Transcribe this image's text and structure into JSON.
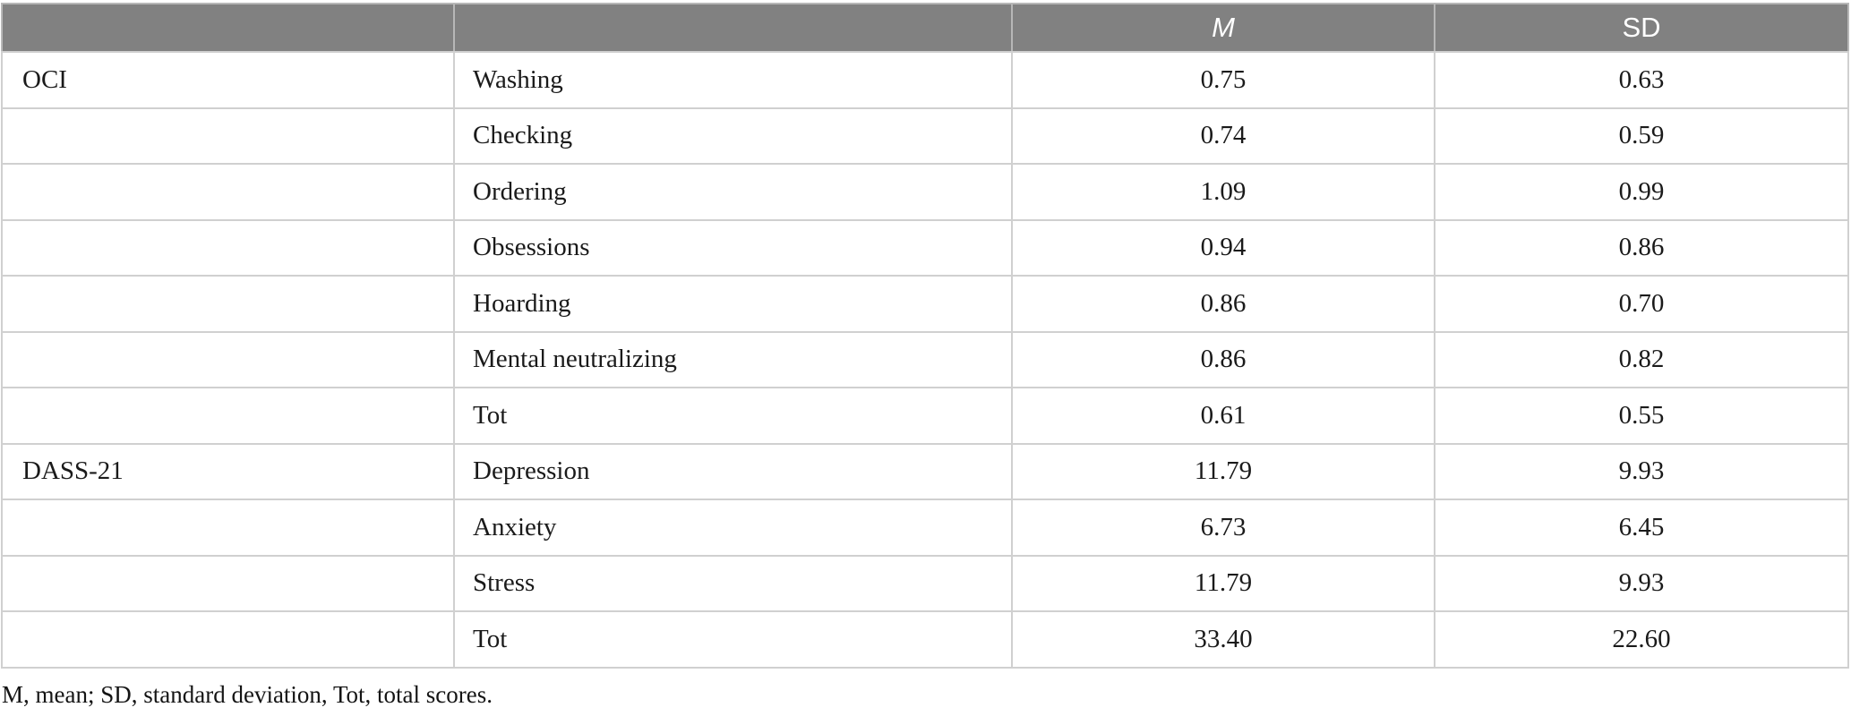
{
  "table": {
    "header": {
      "group_label": "",
      "subscale_label": "",
      "m_label": "M",
      "sd_label": "SD"
    },
    "rows": [
      {
        "group": "OCI",
        "label": "Washing",
        "m": "0.75",
        "sd": "0.63"
      },
      {
        "group": "",
        "label": "Checking",
        "m": "0.74",
        "sd": "0.59"
      },
      {
        "group": "",
        "label": "Ordering",
        "m": "1.09",
        "sd": "0.99"
      },
      {
        "group": "",
        "label": "Obsessions",
        "m": "0.94",
        "sd": "0.86"
      },
      {
        "group": "",
        "label": "Hoarding",
        "m": "0.86",
        "sd": "0.70"
      },
      {
        "group": "",
        "label": "Mental neutralizing",
        "m": "0.86",
        "sd": "0.82"
      },
      {
        "group": "",
        "label": "Tot",
        "m": "0.61",
        "sd": "0.55"
      },
      {
        "group": "DASS-21",
        "label": "Depression",
        "m": "11.79",
        "sd": "9.93"
      },
      {
        "group": "",
        "label": "Anxiety",
        "m": "6.73",
        "sd": "6.45"
      },
      {
        "group": "",
        "label": "Stress",
        "m": "11.79",
        "sd": "9.93"
      },
      {
        "group": "",
        "label": "Tot",
        "m": "33.40",
        "sd": "22.60"
      }
    ],
    "footnote": "M, mean; SD, standard deviation, Tot, total scores."
  },
  "colors": {
    "header_bg": "#818181",
    "header_text": "#ffffff",
    "border": "#d0d0d0",
    "body_text": "#1a1a1a"
  }
}
